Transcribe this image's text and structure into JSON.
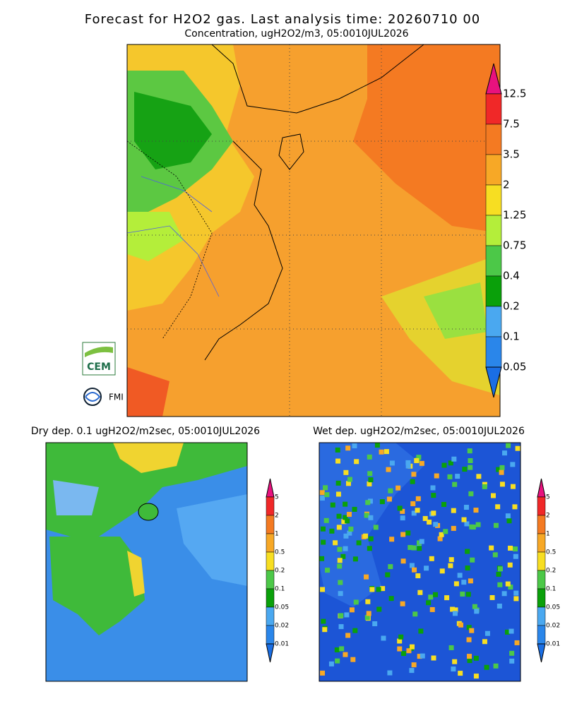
{
  "header": {
    "title": "Forecast for H2O2 gas. Last analysis time: 20260710 00",
    "subtitle": "Concentration, ugH2O2/m3, 05:0010JUL2026"
  },
  "main_colorbar": {
    "labels": [
      "12.5",
      "7.5",
      "3.5",
      "2",
      "1.25",
      "0.75",
      "0.4",
      "0.2",
      "0.1",
      "0.05"
    ],
    "colors": [
      "#e8127e",
      "#f02828",
      "#f47a22",
      "#f7a826",
      "#f7de22",
      "#b4ee3a",
      "#4cc848",
      "#0aa00a",
      "#4aa8f0",
      "#2a86ea",
      "#1a6ee4"
    ]
  },
  "panels": [
    {
      "title": "Dry dep. 0.1 ugH2O2/m2sec, 05:0010JUL2026"
    },
    {
      "title": "Wet dep. ugH2O2/m2sec, 05:0010JUL2026"
    }
  ],
  "small_colorbar": {
    "labels": [
      "5",
      "2",
      "1",
      "0.5",
      "0.2",
      "0.1",
      "0.05",
      "0.02",
      "0.01"
    ],
    "colors": [
      "#e8127e",
      "#f02828",
      "#f47a22",
      "#f7a826",
      "#f7de22",
      "#4cc848",
      "#0aa00a",
      "#4aa8f0",
      "#2a86ea",
      "#1a6ee4"
    ]
  },
  "logos": {
    "cem": "CEM",
    "fmi": "FMI"
  }
}
